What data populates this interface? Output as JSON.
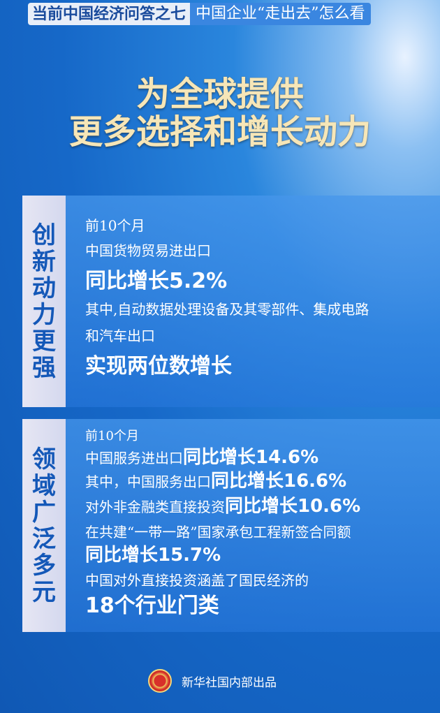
{
  "header": {
    "series": "当前中国经济问答之七",
    "topic": "中国企业“走出去”怎么看"
  },
  "title": {
    "line1": "为全球提供",
    "line2": "更多选择和增长动力"
  },
  "section1": {
    "label": [
      "创",
      "新",
      "动",
      "力",
      "更",
      "强"
    ],
    "lines": [
      "前10个月",
      "中国货物贸易进出口",
      "同比增长5.2%",
      "其中,自动数据处理设备及其零部件、集成电路",
      "和汽车出口",
      "实现两位数增长"
    ]
  },
  "section2": {
    "label": [
      "领",
      "域",
      "广",
      "泛",
      "多",
      "元"
    ],
    "l1": "前10个月",
    "l2a": "中国服务进出口",
    "l2b": "同比增长14.6%",
    "l3a": "其中，中国服务出口",
    "l3b": "同比增长16.6%",
    "l4a": "对外非金融类直接投资",
    "l4b": "同比增长10.6%",
    "l5": "在共建“一带一路”国家承包工程新签合同额",
    "l6": "同比增长15.7%",
    "l7": "中国对外直接投资涵盖了国民经济的",
    "l8": "18个行业门类"
  },
  "footer": {
    "text": "新华社国内部出品",
    "logo": "xinhua-logo"
  }
}
